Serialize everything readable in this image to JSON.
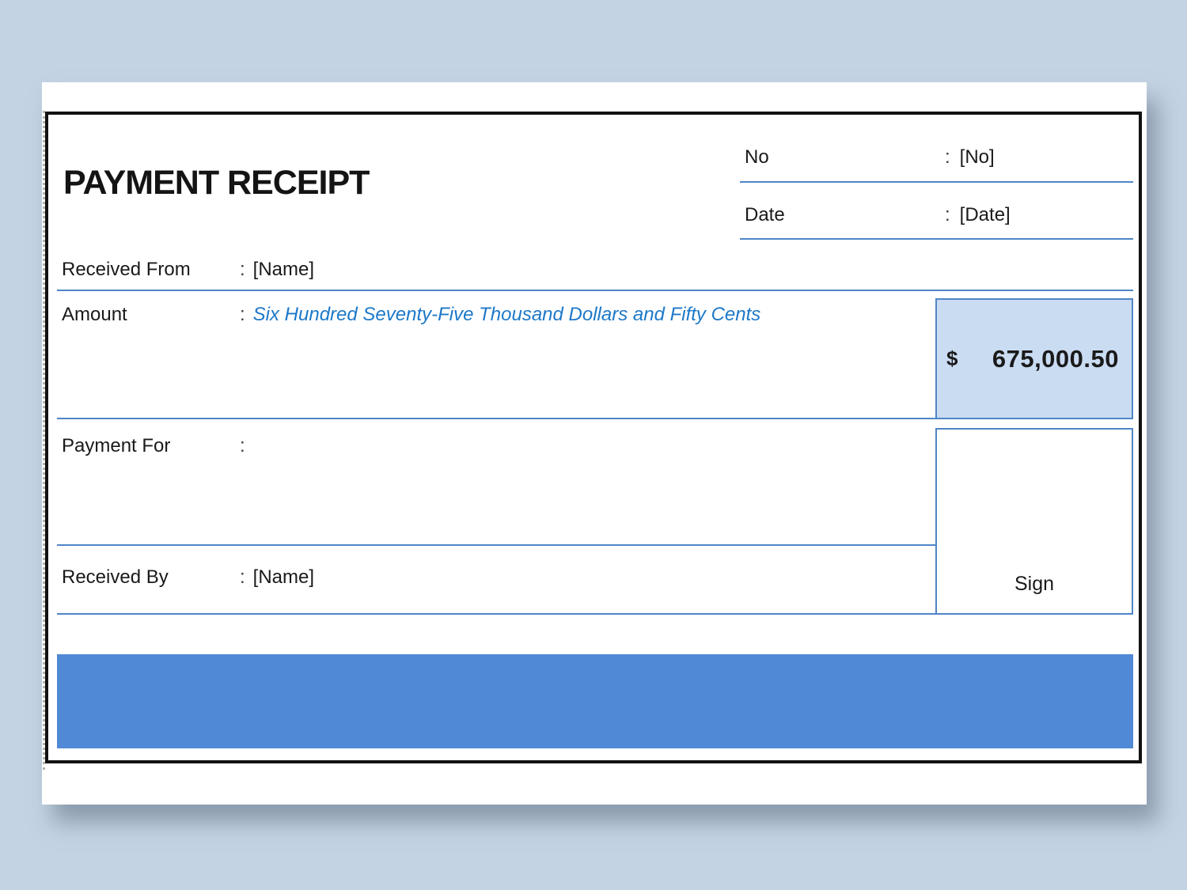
{
  "receipt": {
    "title": "PAYMENT RECEIPT",
    "fields": {
      "no": {
        "label": "No",
        "separator": ":",
        "value": "[No]"
      },
      "date": {
        "label": "Date",
        "separator": ":",
        "value": "[Date]"
      },
      "received_from": {
        "label": "Received From",
        "separator": ":",
        "value": "[Name]"
      },
      "amount": {
        "label": "Amount",
        "separator": ":",
        "value_words": "Six Hundred Seventy-Five Thousand Dollars and Fifty Cents"
      },
      "amount_numeric": {
        "currency_symbol": "$",
        "value": "675,000.50"
      },
      "payment_for": {
        "label": "Payment For",
        "separator": ":",
        "value": ""
      },
      "received_by": {
        "label": "Received By",
        "separator": ":",
        "value": "[Name]"
      },
      "sign": {
        "label": "Sign"
      }
    },
    "colors": {
      "accent_blue": "#4f86c6",
      "banner_blue": "#5089d6",
      "amount_box_fill": "#cadcf2",
      "amount_words_blue": "#1d78c8",
      "page_background": "#c3d3e3"
    }
  }
}
